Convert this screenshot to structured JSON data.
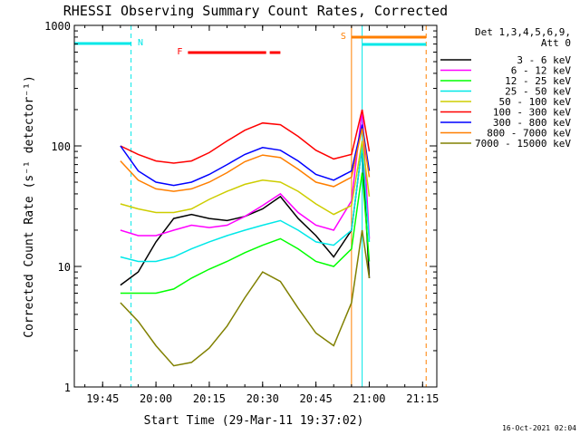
{
  "chart_data": {
    "type": "line",
    "title": "RHESSI Observing Summary Count Rates, Corrected",
    "xlabel": "Start Time (29-Mar-11 19:37:02)",
    "ylabel": "Corrected Count Rate (s⁻¹ detector⁻¹)",
    "xlim": [
      "19:37:02",
      "21:19:00"
    ],
    "ylim": [
      1,
      1000
    ],
    "yscale": "log",
    "x_ticks": [
      "19:45",
      "20:00",
      "20:15",
      "20:30",
      "20:45",
      "21:00",
      "21:15"
    ],
    "y_ticks": [
      "1",
      "10",
      "100",
      "1000"
    ],
    "grid": false,
    "legend_position": "right",
    "detectors": "Det 1,3,4,5,6,9,",
    "attenuator": "Att 0",
    "footer_date": "16-Oct-2021 02:04",
    "status_bars": [
      {
        "name": "N",
        "label": "N",
        "color": "#00e8e8",
        "segments": [
          [
            "19:37:02",
            "19:53:00"
          ]
        ]
      },
      {
        "name": "F",
        "label": "F",
        "color": "#ff0000",
        "segments": [
          [
            "20:09:00",
            "20:31:00"
          ],
          [
            "20:32:00",
            "20:35:00"
          ]
        ]
      },
      {
        "name": "S",
        "label": "S",
        "color": "#ff7f00",
        "segments": [
          [
            "20:55:00",
            "21:16:00"
          ]
        ]
      },
      {
        "name": "Night",
        "color": "#00e8e8",
        "segments": [
          [
            "20:58:00",
            "21:16:00"
          ]
        ]
      }
    ],
    "vertical_markers": [
      {
        "time": "19:53:00",
        "color": "#00e8e8",
        "style": "dashed"
      },
      {
        "time": "20:55:00",
        "color": "#ff7f00",
        "style": "solid"
      },
      {
        "time": "20:58:00",
        "color": "#00e8e8",
        "style": "solid"
      },
      {
        "time": "21:16:00",
        "color": "#ff7f00",
        "style": "dashed"
      }
    ],
    "x": [
      "19:50",
      "19:55",
      "20:00",
      "20:05",
      "20:10",
      "20:15",
      "20:20",
      "20:25",
      "20:30",
      "20:35",
      "20:40",
      "20:45",
      "20:50",
      "20:55",
      "20:58",
      "21:00"
    ],
    "series": [
      {
        "name": "3 - 6 keV",
        "color": "#000000",
        "values": [
          7,
          9,
          16,
          25,
          27,
          25,
          24,
          26,
          30,
          38,
          25,
          18,
          12,
          20,
          100,
          8
        ]
      },
      {
        "name": "6 - 12 keV",
        "color": "#ff00ff",
        "values": [
          20,
          18,
          18,
          20,
          22,
          21,
          22,
          26,
          32,
          40,
          28,
          22,
          20,
          35,
          200,
          17
        ]
      },
      {
        "name": "12 - 25 keV",
        "color": "#00ff00",
        "values": [
          6,
          6,
          6,
          6.5,
          8,
          9.5,
          11,
          13,
          15,
          17,
          14,
          11,
          10,
          14,
          60,
          11
        ]
      },
      {
        "name": "25 - 50 keV",
        "color": "#00e8e8",
        "values": [
          12,
          11,
          11,
          12,
          14,
          16,
          18,
          20,
          22,
          24,
          20,
          16,
          15,
          20,
          100,
          16
        ]
      },
      {
        "name": "50 - 100 keV",
        "color": "#cdcd00",
        "values": [
          33,
          30,
          28,
          28,
          30,
          36,
          42,
          48,
          52,
          50,
          42,
          33,
          27,
          32,
          110,
          38
        ]
      },
      {
        "name": "100 - 300 keV",
        "color": "#ff0000",
        "values": [
          100,
          85,
          75,
          72,
          75,
          88,
          110,
          135,
          155,
          150,
          120,
          92,
          78,
          85,
          200,
          90
        ]
      },
      {
        "name": "300 - 800 keV",
        "color": "#0000ff",
        "values": [
          100,
          62,
          50,
          47,
          50,
          58,
          70,
          85,
          97,
          92,
          75,
          58,
          52,
          62,
          150,
          62
        ]
      },
      {
        "name": "800 - 7000 keV",
        "color": "#ff7f00",
        "values": [
          75,
          52,
          44,
          42,
          44,
          50,
          60,
          74,
          84,
          80,
          64,
          50,
          46,
          55,
          140,
          55
        ]
      },
      {
        "name": "7000 - 15000 keV",
        "color": "#808000",
        "values": [
          5,
          3.5,
          2.2,
          1.5,
          1.6,
          2.1,
          3.2,
          5.5,
          9,
          7.5,
          4.5,
          2.8,
          2.2,
          5,
          20,
          8
        ]
      }
    ]
  }
}
